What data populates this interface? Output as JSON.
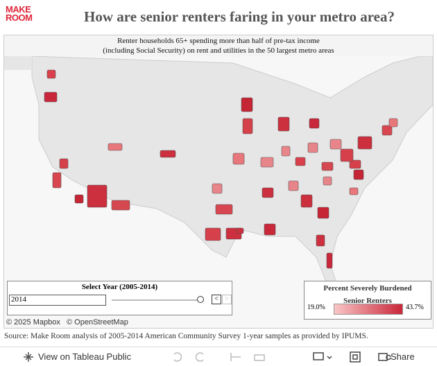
{
  "logo": {
    "line1": "MAKE",
    "line2": "ROOM"
  },
  "header": {
    "title": "How are senior renters faring in your metro area?"
  },
  "map": {
    "subtitle_line1": "Renter households 65+ spending more than half of pre-tax income",
    "subtitle_line2": "(including Social Security) on rent and utilities in the 50 largest metro areas",
    "attribution_mapbox": "© 2025 Mapbox",
    "attribution_osm": "© OpenStreetMap"
  },
  "year_filter": {
    "label": "Select Year (2005-2014)",
    "selected": "2014"
  },
  "legend": {
    "title_line1": "Percent Severely Burdened",
    "title_line2": "Senior Renters",
    "min_label": "19.0%",
    "max_label": "43.7%"
  },
  "source": "Source: Make Room analysis of 2005-2014 American Community Survey 1-year samples as provided by IPUMS.",
  "toolbar": {
    "view_label": "View on Tableau Public",
    "share_label": "Share"
  }
}
